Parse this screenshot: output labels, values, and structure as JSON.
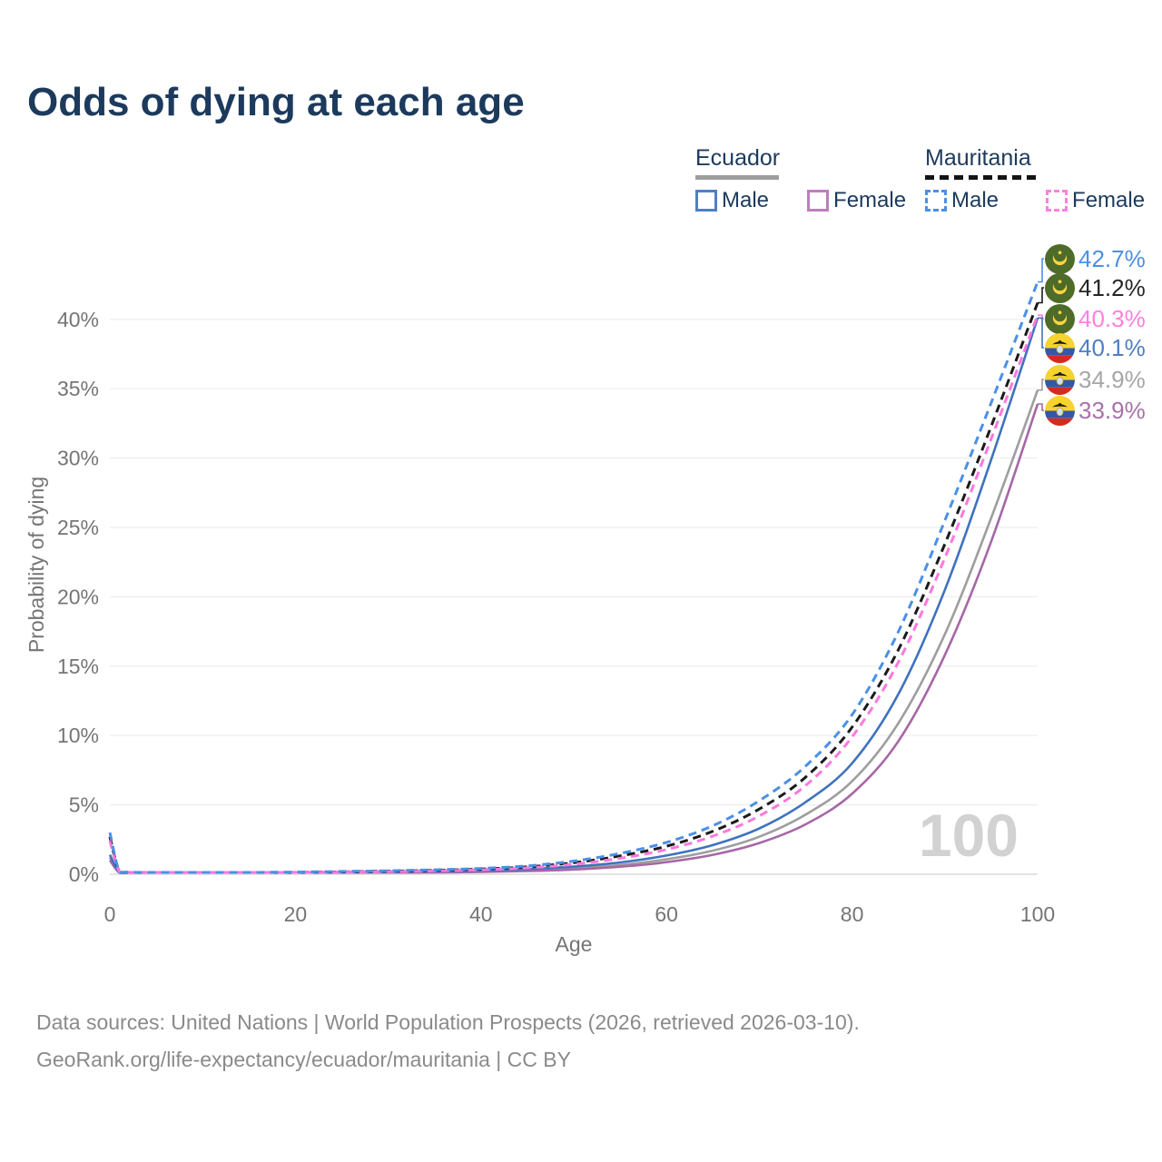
{
  "title": "Odds of dying at each age",
  "watermark_age": "100",
  "legend": {
    "ecuador": {
      "label": "Ecuador",
      "male": "Male",
      "female": "Female",
      "line_color": "#9e9e9e",
      "male_color": "#4e7fc4",
      "female_color": "#bd7ebd"
    },
    "mauritania": {
      "label": "Mauritania",
      "male": "Male",
      "female": "Female",
      "line_color": "#141414",
      "male_color": "#4a90e8",
      "female_color": "#ff80df"
    }
  },
  "end_labels": [
    {
      "value": "42.7%",
      "color": "#4a90e8",
      "flag": "mauritania",
      "series": "Mauritania Male"
    },
    {
      "value": "41.2%",
      "color": "#262626",
      "flag": "mauritania",
      "series": "Mauritania Both"
    },
    {
      "value": "40.3%",
      "color": "#ff80e0",
      "flag": "mauritania",
      "series": "Mauritania Female"
    },
    {
      "value": "40.1%",
      "color": "#4d7fc4",
      "flag": "ecuador",
      "series": "Ecuador Male"
    },
    {
      "value": "34.9%",
      "color": "#a6a6a6",
      "flag": "ecuador",
      "series": "Ecuador Both"
    },
    {
      "value": "33.9%",
      "color": "#a872a8",
      "flag": "ecuador",
      "series": "Ecuador Female"
    }
  ],
  "axes": {
    "x_label": "Age",
    "y_label": "Probability of dying"
  },
  "footer": {
    "line1": "Data sources: United Nations | World Population Prospects (2026, retrieved 2026-03-10).",
    "line2": "GeoRank.org/life-expectancy/ecuador/mauritania | CC BY"
  },
  "chart_data": {
    "type": "line",
    "title": "Odds of dying at each age",
    "xlabel": "Age",
    "ylabel": "Probability of dying",
    "x_ticks": [
      0,
      20,
      40,
      60,
      80,
      100
    ],
    "y_ticks_pct": [
      0,
      5,
      10,
      15,
      20,
      25,
      30,
      35,
      40
    ],
    "xlim": [
      0,
      100
    ],
    "ylim_pct": [
      0,
      44
    ],
    "grid": true,
    "legend_position": "top-right",
    "ages": [
      0,
      1,
      2,
      5,
      10,
      15,
      20,
      25,
      30,
      35,
      40,
      45,
      50,
      55,
      60,
      65,
      70,
      75,
      80,
      85,
      90,
      95,
      100
    ],
    "series": [
      {
        "name": "Mauritania Male",
        "country": "Mauritania",
        "sex": "male",
        "style": "dashed",
        "color": "#4a90e8",
        "end_value_pct": 42.7,
        "values_pct": [
          3.0,
          0.25,
          0.15,
          0.09,
          0.08,
          0.11,
          0.16,
          0.2,
          0.25,
          0.32,
          0.42,
          0.6,
          0.95,
          1.5,
          2.3,
          3.5,
          5.3,
          7.8,
          11.5,
          17.5,
          25.5,
          34.0,
          42.7
        ]
      },
      {
        "name": "Mauritania Both",
        "country": "Mauritania",
        "sex": "both",
        "style": "dashed",
        "color": "#1a1a1a",
        "end_value_pct": 41.2,
        "values_pct": [
          2.7,
          0.22,
          0.13,
          0.08,
          0.07,
          0.1,
          0.14,
          0.17,
          0.22,
          0.28,
          0.37,
          0.53,
          0.83,
          1.32,
          2.02,
          3.1,
          4.7,
          7.0,
          10.6,
          16.2,
          23.8,
          32.3,
          41.2
        ]
      },
      {
        "name": "Mauritania Female",
        "country": "Mauritania",
        "sex": "female",
        "style": "dashed",
        "color": "#ff77dd",
        "end_value_pct": 40.3,
        "values_pct": [
          2.4,
          0.2,
          0.12,
          0.07,
          0.06,
          0.08,
          0.12,
          0.15,
          0.19,
          0.24,
          0.32,
          0.46,
          0.72,
          1.15,
          1.78,
          2.75,
          4.2,
          6.4,
          9.9,
          15.3,
          22.8,
          31.4,
          40.3
        ]
      },
      {
        "name": "Ecuador Male",
        "country": "Ecuador",
        "sex": "male",
        "style": "solid",
        "color": "#3f72bf",
        "end_value_pct": 40.1,
        "values_pct": [
          1.4,
          0.1,
          0.07,
          0.04,
          0.04,
          0.07,
          0.11,
          0.14,
          0.17,
          0.21,
          0.27,
          0.37,
          0.55,
          0.85,
          1.35,
          2.1,
          3.3,
          5.2,
          8.0,
          13.0,
          20.5,
          29.9,
          40.1
        ]
      },
      {
        "name": "Ecuador Both",
        "country": "Ecuador",
        "sex": "both",
        "style": "solid",
        "color": "#9e9e9e",
        "end_value_pct": 34.9,
        "values_pct": [
          1.2,
          0.09,
          0.06,
          0.04,
          0.03,
          0.05,
          0.08,
          0.11,
          0.13,
          0.16,
          0.21,
          0.29,
          0.43,
          0.67,
          1.08,
          1.7,
          2.7,
          4.3,
          6.7,
          10.9,
          17.3,
          25.7,
          34.9
        ]
      },
      {
        "name": "Ecuador Female",
        "country": "Ecuador",
        "sex": "female",
        "style": "solid",
        "color": "#a667a6",
        "end_value_pct": 33.9,
        "values_pct": [
          1.0,
          0.08,
          0.05,
          0.03,
          0.03,
          0.04,
          0.06,
          0.08,
          0.1,
          0.13,
          0.17,
          0.23,
          0.34,
          0.54,
          0.87,
          1.4,
          2.25,
          3.6,
          5.8,
          9.6,
          15.8,
          24.0,
          33.9
        ]
      }
    ]
  }
}
